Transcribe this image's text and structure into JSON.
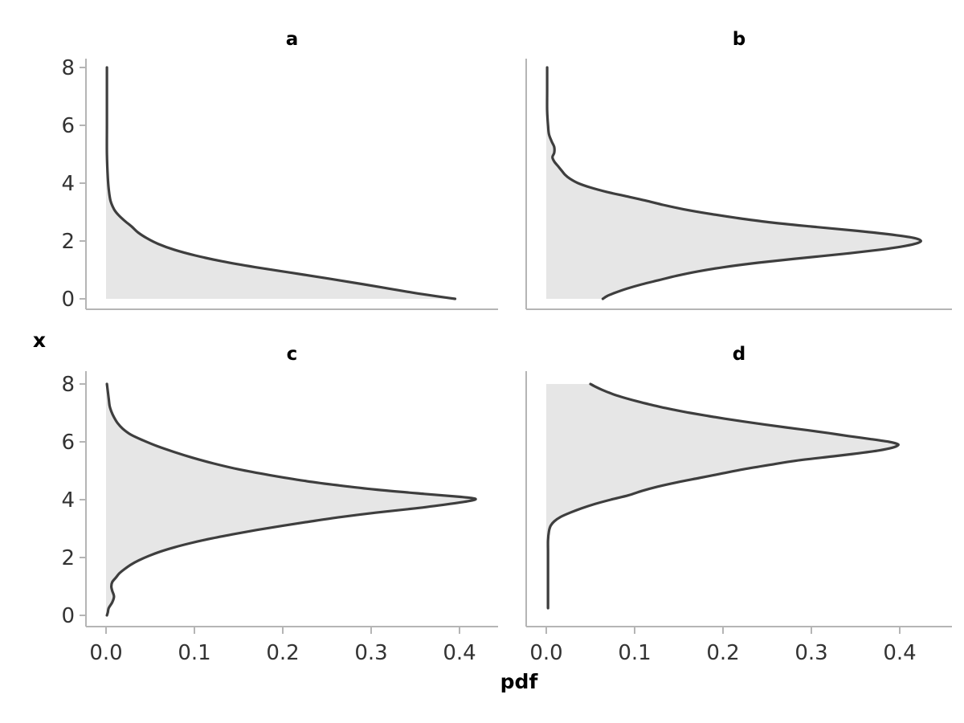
{
  "figure": {
    "xlabel": "pdf",
    "ylabel": "x",
    "x_tick_labels": [
      "0.0",
      "0.1",
      "0.2",
      "0.3",
      "0.4"
    ],
    "y_tick_labels": [
      "0",
      "2",
      "4",
      "6",
      "8"
    ],
    "panel_titles": [
      "a",
      "b",
      "c",
      "d"
    ],
    "colors": {
      "curve": "#3e3e3e",
      "fill": "#e6e6e6",
      "axis": "#b5b5b5",
      "tick_text": "#333333",
      "label_text": "#000000",
      "background": "#ffffff"
    }
  },
  "chart_data": {
    "type": "area",
    "orientation": "horizontal (pdf on x-axis, variable x on y-axis)",
    "title": "",
    "xlabel": "pdf",
    "ylabel": "x",
    "x_range": [
      0,
      0.45
    ],
    "y_range": [
      0,
      8
    ],
    "x_ticks": [
      0.0,
      0.1,
      0.2,
      0.3,
      0.4
    ],
    "y_ticks": [
      0,
      2,
      4,
      6,
      8
    ],
    "grid": false,
    "legend": false,
    "panels": [
      {
        "label": "a",
        "peak": {
          "x": 0.0,
          "pdf": 0.4
        },
        "points_x_pdf": [
          [
            8,
            0.001
          ],
          [
            7,
            0.001
          ],
          [
            6,
            0.001
          ],
          [
            5,
            0.001
          ],
          [
            4.2,
            0.002
          ],
          [
            3.8,
            0.003
          ],
          [
            3.4,
            0.005
          ],
          [
            3.1,
            0.009
          ],
          [
            2.9,
            0.014
          ],
          [
            2.7,
            0.021
          ],
          [
            2.5,
            0.029
          ],
          [
            2.3,
            0.036
          ],
          [
            2.1,
            0.046
          ],
          [
            1.9,
            0.059
          ],
          [
            1.7,
            0.077
          ],
          [
            1.5,
            0.101
          ],
          [
            1.3,
            0.131
          ],
          [
            1.1,
            0.168
          ],
          [
            0.9,
            0.21
          ],
          [
            0.7,
            0.252
          ],
          [
            0.5,
            0.292
          ],
          [
            0.35,
            0.321
          ],
          [
            0.2,
            0.35
          ],
          [
            0.1,
            0.372
          ],
          [
            0.03,
            0.388
          ],
          [
            0,
            0.395
          ]
        ]
      },
      {
        "label": "b",
        "peak": {
          "x": 2.0,
          "pdf": 0.424
        },
        "points_x_pdf": [
          [
            8,
            0.001
          ],
          [
            7.2,
            0.001
          ],
          [
            6.5,
            0.001
          ],
          [
            6,
            0.002
          ],
          [
            5.7,
            0.003
          ],
          [
            5.45,
            0.006
          ],
          [
            5.25,
            0.009
          ],
          [
            5.05,
            0.009
          ],
          [
            4.9,
            0.007
          ],
          [
            4.75,
            0.009
          ],
          [
            4.6,
            0.013
          ],
          [
            4.45,
            0.017
          ],
          [
            4.3,
            0.021
          ],
          [
            4.15,
            0.027
          ],
          [
            4,
            0.036
          ],
          [
            3.85,
            0.05
          ],
          [
            3.7,
            0.068
          ],
          [
            3.55,
            0.09
          ],
          [
            3.4,
            0.112
          ],
          [
            3.25,
            0.132
          ],
          [
            3.1,
            0.155
          ],
          [
            2.95,
            0.183
          ],
          [
            2.8,
            0.215
          ],
          [
            2.65,
            0.252
          ],
          [
            2.5,
            0.3
          ],
          [
            2.35,
            0.352
          ],
          [
            2.2,
            0.396
          ],
          [
            2.1,
            0.417
          ],
          [
            2,
            0.424
          ],
          [
            1.9,
            0.417
          ],
          [
            1.8,
            0.401
          ],
          [
            1.7,
            0.378
          ],
          [
            1.55,
            0.335
          ],
          [
            1.4,
            0.286
          ],
          [
            1.25,
            0.24
          ],
          [
            1.1,
            0.202
          ],
          [
            0.95,
            0.172
          ],
          [
            0.8,
            0.148
          ],
          [
            0.65,
            0.128
          ],
          [
            0.5,
            0.108
          ],
          [
            0.35,
            0.091
          ],
          [
            0.2,
            0.077
          ],
          [
            0.1,
            0.069
          ],
          [
            0,
            0.064
          ]
        ]
      },
      {
        "label": "c",
        "peak": {
          "x": 4.05,
          "pdf": 0.42
        },
        "points_x_pdf": [
          [
            8,
            0.001
          ],
          [
            7.75,
            0.002
          ],
          [
            7.5,
            0.003
          ],
          [
            7.25,
            0.004
          ],
          [
            7.05,
            0.006
          ],
          [
            6.85,
            0.009
          ],
          [
            6.65,
            0.013
          ],
          [
            6.45,
            0.019
          ],
          [
            6.25,
            0.028
          ],
          [
            6.05,
            0.042
          ],
          [
            5.85,
            0.058
          ],
          [
            5.65,
            0.077
          ],
          [
            5.45,
            0.098
          ],
          [
            5.25,
            0.122
          ],
          [
            5.05,
            0.15
          ],
          [
            4.85,
            0.185
          ],
          [
            4.65,
            0.225
          ],
          [
            4.5,
            0.262
          ],
          [
            4.35,
            0.305
          ],
          [
            4.2,
            0.36
          ],
          [
            4.1,
            0.4
          ],
          [
            4.03,
            0.418
          ],
          [
            3.95,
            0.41
          ],
          [
            3.85,
            0.388
          ],
          [
            3.7,
            0.35
          ],
          [
            3.55,
            0.305
          ],
          [
            3.4,
            0.266
          ],
          [
            3.25,
            0.232
          ],
          [
            3.1,
            0.2
          ],
          [
            2.95,
            0.17
          ],
          [
            2.8,
            0.143
          ],
          [
            2.65,
            0.118
          ],
          [
            2.5,
            0.096
          ],
          [
            2.35,
            0.077
          ],
          [
            2.2,
            0.061
          ],
          [
            2.05,
            0.048
          ],
          [
            1.9,
            0.037
          ],
          [
            1.75,
            0.028
          ],
          [
            1.6,
            0.021
          ],
          [
            1.45,
            0.015
          ],
          [
            1.3,
            0.011
          ],
          [
            1.15,
            0.007
          ],
          [
            1,
            0.006
          ],
          [
            0.85,
            0.007
          ],
          [
            0.65,
            0.009
          ],
          [
            0.45,
            0.007
          ],
          [
            0.25,
            0.003
          ],
          [
            0.1,
            0.002
          ],
          [
            0,
            0.001
          ]
        ]
      },
      {
        "label": "d",
        "peak": {
          "x": 5.95,
          "pdf": 0.398
        },
        "points_x_pdf": [
          [
            8,
            0.05
          ],
          [
            7.9,
            0.056
          ],
          [
            7.8,
            0.063
          ],
          [
            7.7,
            0.071
          ],
          [
            7.6,
            0.08
          ],
          [
            7.5,
            0.091
          ],
          [
            7.4,
            0.103
          ],
          [
            7.3,
            0.116
          ],
          [
            7.2,
            0.13
          ],
          [
            7.1,
            0.146
          ],
          [
            7,
            0.163
          ],
          [
            6.9,
            0.182
          ],
          [
            6.8,
            0.202
          ],
          [
            6.7,
            0.224
          ],
          [
            6.6,
            0.247
          ],
          [
            6.5,
            0.271
          ],
          [
            6.4,
            0.296
          ],
          [
            6.3,
            0.32
          ],
          [
            6.2,
            0.342
          ],
          [
            6.1,
            0.366
          ],
          [
            6,
            0.388
          ],
          [
            5.93,
            0.397
          ],
          [
            5.88,
            0.398
          ],
          [
            5.8,
            0.392
          ],
          [
            5.7,
            0.376
          ],
          [
            5.6,
            0.352
          ],
          [
            5.5,
            0.325
          ],
          [
            5.35,
            0.283
          ],
          [
            5.2,
            0.252
          ],
          [
            5.05,
            0.223
          ],
          [
            4.9,
            0.198
          ],
          [
            4.75,
            0.173
          ],
          [
            4.6,
            0.148
          ],
          [
            4.45,
            0.126
          ],
          [
            4.3,
            0.108
          ],
          [
            4.15,
            0.093
          ],
          [
            4,
            0.073
          ],
          [
            3.85,
            0.055
          ],
          [
            3.7,
            0.04
          ],
          [
            3.55,
            0.027
          ],
          [
            3.4,
            0.016
          ],
          [
            3.25,
            0.009
          ],
          [
            3.1,
            0.005
          ],
          [
            2.9,
            0.003
          ],
          [
            2.6,
            0.002
          ],
          [
            2.2,
            0.002
          ],
          [
            1.8,
            0.002
          ],
          [
            1.4,
            0.002
          ],
          [
            1,
            0.002
          ],
          [
            0.6,
            0.002
          ],
          [
            0.25,
            0.002
          ]
        ]
      }
    ]
  }
}
